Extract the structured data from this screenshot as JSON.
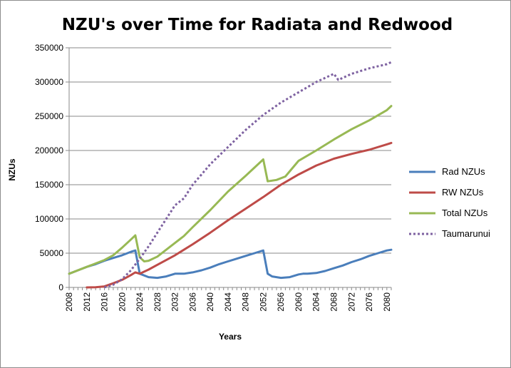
{
  "chart_data": {
    "type": "line",
    "title": "NZU's over Time for Radiata and Redwood",
    "xlabel": "Years",
    "ylabel": "NZUs",
    "xlim": [
      2008,
      2081
    ],
    "ylim": [
      0,
      350000
    ],
    "x_ticks": [
      "2008",
      "2012",
      "2016",
      "2020",
      "2024",
      "2028",
      "2032",
      "2036",
      "2040",
      "2044",
      "2048",
      "2052",
      "2056",
      "2060",
      "2064",
      "2068",
      "2072",
      "2076",
      "2080"
    ],
    "y_ticks": [
      "0",
      "50000",
      "100000",
      "150000",
      "200000",
      "250000",
      "300000",
      "350000"
    ],
    "grid": "horizontal",
    "legend_position": "right",
    "series": [
      {
        "name": "Rad NZUs",
        "color": "#4a7ebb",
        "style": "solid",
        "x": [
          2008,
          2010,
          2012,
          2014,
          2016,
          2018,
          2020,
          2022,
          2023,
          2024,
          2026,
          2028,
          2030,
          2032,
          2034,
          2036,
          2038,
          2040,
          2042,
          2044,
          2046,
          2048,
          2050,
          2052,
          2053,
          2054,
          2056,
          2058,
          2060,
          2061,
          2062,
          2064,
          2066,
          2068,
          2070,
          2072,
          2074,
          2076,
          2078,
          2080,
          2081
        ],
        "y": [
          20000,
          25000,
          30000,
          34000,
          39000,
          43000,
          47000,
          52000,
          54000,
          20000,
          15000,
          14000,
          16000,
          20000,
          20000,
          22000,
          25000,
          29000,
          34000,
          38000,
          42000,
          46000,
          50000,
          54000,
          20000,
          16000,
          14000,
          15000,
          19000,
          20000,
          20000,
          21000,
          24000,
          28000,
          32000,
          37000,
          41000,
          46000,
          50000,
          54000,
          55000
        ]
      },
      {
        "name": "RW NZUs",
        "color": "#be4b48",
        "style": "solid",
        "x": [
          2012,
          2014,
          2016,
          2018,
          2020,
          2022,
          2023,
          2024,
          2026,
          2028,
          2032,
          2036,
          2040,
          2044,
          2048,
          2052,
          2056,
          2060,
          2064,
          2068,
          2072,
          2076,
          2080,
          2081
        ],
        "y": [
          0,
          300,
          1500,
          6000,
          11000,
          18000,
          22000,
          20000,
          26000,
          33000,
          47000,
          63000,
          80000,
          98000,
          115000,
          132000,
          150000,
          165000,
          178000,
          188000,
          195000,
          201000,
          209000,
          211000
        ]
      },
      {
        "name": "Total NZUs",
        "color": "#98b954",
        "style": "solid",
        "x": [
          2008,
          2012,
          2016,
          2018,
          2020,
          2022,
          2023,
          2024,
          2025,
          2026,
          2028,
          2030,
          2032,
          2034,
          2036,
          2040,
          2044,
          2048,
          2052,
          2053,
          2055,
          2057,
          2060,
          2064,
          2068,
          2072,
          2076,
          2080,
          2081
        ],
        "y": [
          20000,
          30000,
          40000,
          47000,
          58000,
          70000,
          76000,
          44000,
          38000,
          39000,
          45000,
          55000,
          65000,
          75000,
          88000,
          113000,
          140000,
          163000,
          187000,
          155000,
          157000,
          162000,
          185000,
          200000,
          216000,
          231000,
          244000,
          259000,
          265000
        ]
      },
      {
        "name": "Taumarunui",
        "color": "#7e62a1",
        "style": "dotted",
        "x": [
          2016,
          2018,
          2020,
          2022,
          2024,
          2026,
          2028,
          2030,
          2032,
          2034,
          2036,
          2038,
          2040,
          2044,
          2048,
          2052,
          2056,
          2060,
          2064,
          2068,
          2069,
          2072,
          2076,
          2080,
          2081
        ],
        "y": [
          0,
          4000,
          12000,
          25000,
          42000,
          60000,
          80000,
          100000,
          120000,
          130000,
          150000,
          165000,
          180000,
          205000,
          230000,
          252000,
          270000,
          285000,
          300000,
          312000,
          303000,
          312000,
          320000,
          326000,
          329000
        ]
      }
    ]
  }
}
